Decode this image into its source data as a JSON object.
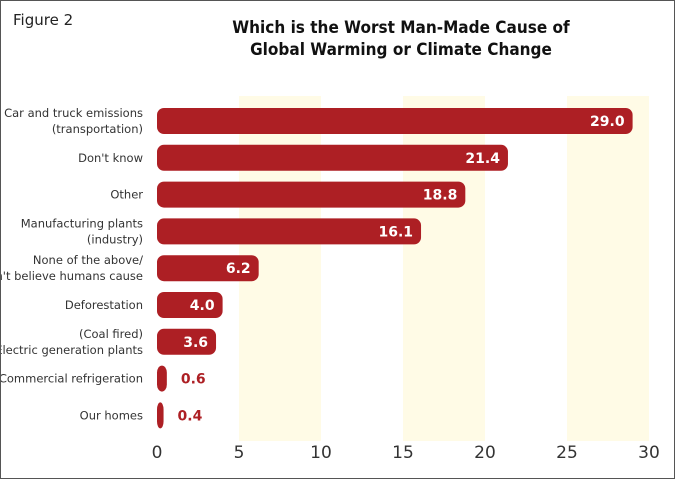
{
  "figure_label": "Figure 2",
  "chart_data": {
    "type": "bar",
    "orientation": "horizontal",
    "title": [
      "Which is the Worst Man-Made Cause of",
      "Global Warming or Climate Change"
    ],
    "categories": [
      [
        "Car and truck emissions",
        "(transportation)"
      ],
      [
        "Don't know"
      ],
      [
        "Other"
      ],
      [
        "Manufacturing plants",
        "(industry)"
      ],
      [
        "None of the above/",
        "Don't believe humans cause"
      ],
      [
        "Deforestation"
      ],
      [
        "(Coal fired)",
        "Electric generation plants"
      ],
      [
        "Commercial refrigeration"
      ],
      [
        "Our homes"
      ]
    ],
    "values": [
      29.0,
      21.4,
      18.8,
      16.1,
      6.2,
      4.0,
      3.6,
      0.6,
      0.4
    ],
    "value_labels": [
      "29.0",
      "21.4",
      "18.8",
      "16.1",
      "6.2",
      "4.0",
      "3.6",
      "0.6",
      "0.4"
    ],
    "xlim": [
      0,
      30
    ],
    "xticks": [
      "0",
      "5",
      "10",
      "15",
      "20",
      "25",
      "30"
    ],
    "bar_color": "#ad1f24",
    "band_color": "#fffbe6"
  }
}
